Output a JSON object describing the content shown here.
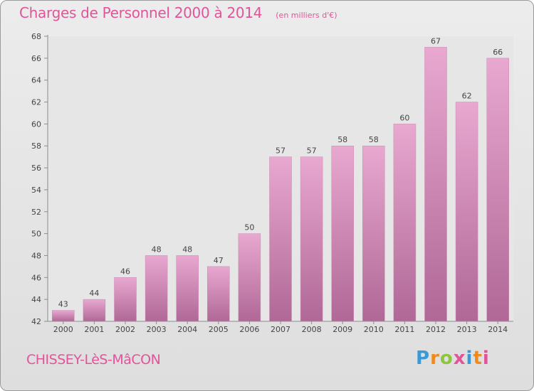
{
  "header": {
    "title": "Charges de Personnel 2000 à 2014",
    "subtitle": "(en milliers d'€)"
  },
  "footer": {
    "commune": "CHISSEY-LèS-MâCON",
    "brand": "Proxiti"
  },
  "colors": {
    "title": "#e0559a",
    "bar_top": "#e8a8d0",
    "bar_bottom": "#b06896",
    "brand_letters": [
      "#3a9ad8",
      "#f08a1c",
      "#8cc63f",
      "#e0559a",
      "#3a9ad8",
      "#f08a1c",
      "#e0559a"
    ]
  },
  "chart_data": {
    "type": "bar",
    "categories": [
      "2000",
      "2001",
      "2002",
      "2003",
      "2004",
      "2005",
      "2006",
      "2007",
      "2008",
      "2009",
      "2010",
      "2011",
      "2012",
      "2013",
      "2014"
    ],
    "values": [
      43,
      44,
      46,
      48,
      48,
      47,
      50,
      57,
      57,
      58,
      58,
      60,
      67,
      62,
      66
    ],
    "ylim": [
      42,
      68
    ],
    "yticks": [
      42,
      44,
      46,
      48,
      50,
      52,
      54,
      56,
      58,
      60,
      62,
      64,
      66,
      68
    ],
    "grid": false,
    "legend": "none"
  }
}
